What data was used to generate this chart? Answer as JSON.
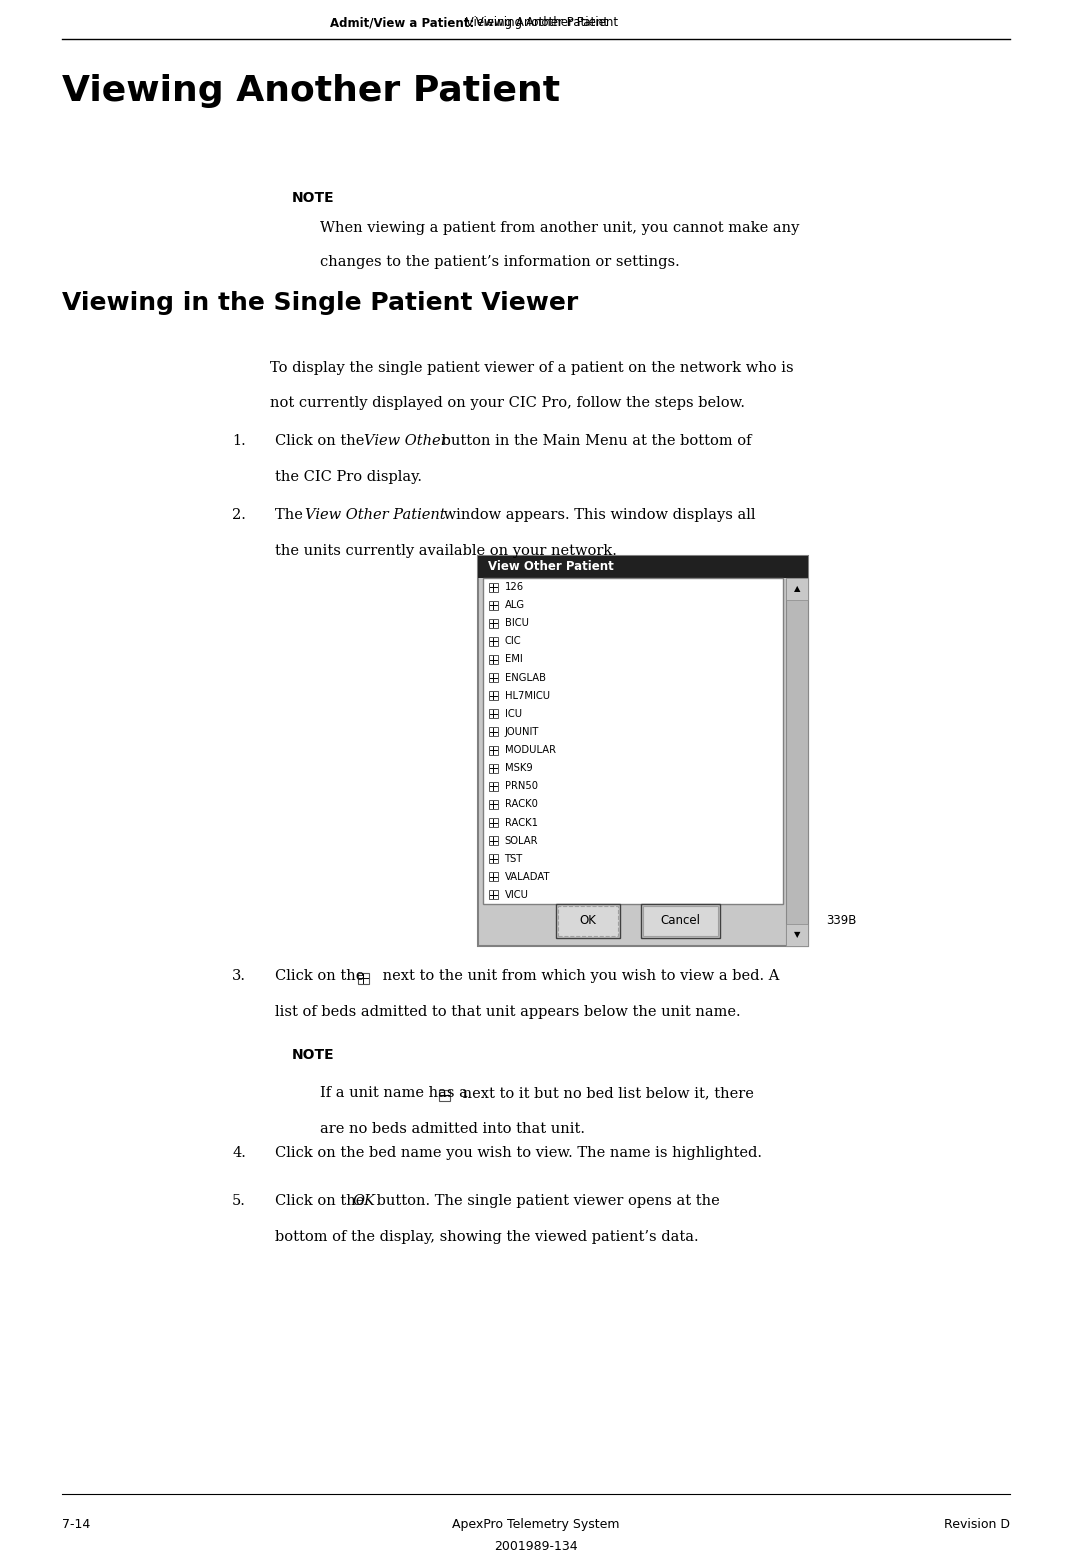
{
  "page_width": 10.51,
  "page_height": 15.36,
  "dpi": 100,
  "bg_color": "#ffffff",
  "header_bold": "Admit/View a Patient:",
  "header_normal": " Viewing Another Patient",
  "main_title": "Viewing Another Patient",
  "note_label": "NOTE",
  "note_text_line1": "When viewing a patient from another unit, you cannot make any",
  "note_text_line2": "changes to the patient’s information or settings.",
  "section_title": "Viewing in the Single Patient Viewer",
  "intro_line1": "To display the single patient viewer of a patient on the network who is",
  "intro_line2": "not currently displayed on your CIC Pro, follow the steps below.",
  "step1_pre": "Click on the ",
  "step1_italic": "View Other",
  "step1_post_line1": " button in the Main Menu at the bottom of",
  "step1_line2": "the CIC Pro display.",
  "step2_pre": "The ",
  "step2_italic": "View Other Patient",
  "step2_post_line1": " window appears. This window displays all",
  "step2_line2": "the units currently available on your network.",
  "dialog_title": "View Other Patient",
  "dialog_items": [
    "126",
    "ALG",
    "BICU",
    "CIC",
    "EMI",
    "ENGLAB",
    "HL7MICU",
    "ICU",
    "JOUNIT",
    "MODULAR",
    "MSK9",
    "PRN50",
    "RACK0",
    "RACK1",
    "SOLAR",
    "TST",
    "VALADAT",
    "VICU"
  ],
  "dialog_label": "339B",
  "step3_pre": "Click on the ",
  "step3_post_line1": " next to the unit from which you wish to view a bed. A",
  "step3_line2": "list of beds admitted to that unit appears below the unit name.",
  "note2_label": "NOTE",
  "note2_line1": "If a unit name has a ",
  "note2_line1_after": " next to it but no bed list below it, there",
  "note2_line2": "are no beds admitted into that unit.",
  "step4": "Click on the bed name you wish to view. The name is highlighted.",
  "step5_pre": "Click on the ",
  "step5_italic": "OK",
  "step5_post_line1": " button. The single patient viewer opens at the",
  "step5_line2": "bottom of the display, showing the viewed patient’s data.",
  "footer_left": "7-14",
  "footer_center1": "ApexPro Telemetry System",
  "footer_center2": "2001989-134",
  "footer_right": "Revision D",
  "serif_font": "DejaVu Serif",
  "sans_font": "DejaVu Sans",
  "body_size": 10.5,
  "header_size": 8.5,
  "title_size": 26,
  "section_size": 18,
  "note_label_size": 10,
  "footer_size": 9
}
